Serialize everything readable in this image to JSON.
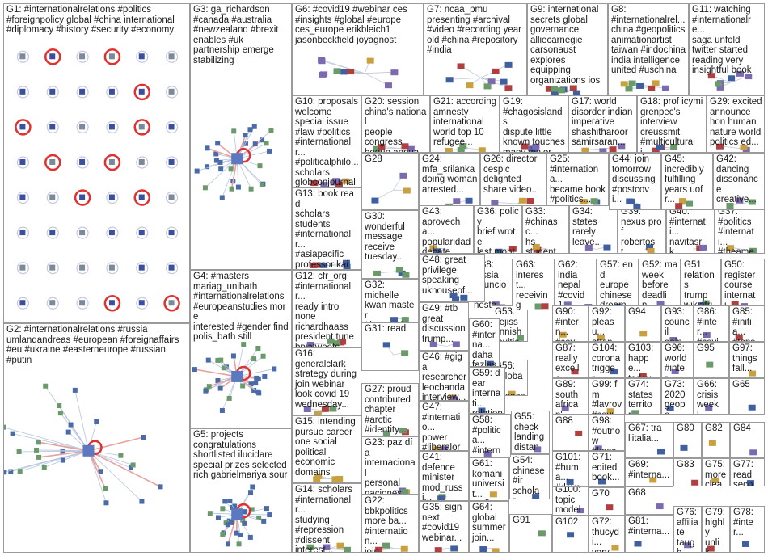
{
  "grid": [
    {
      "id": "G1",
      "kind": "dense",
      "text": "G1: #internationalrelations #politics\n#foreignpolicy global #china international\n#diplomacy #history #security #economy"
    },
    {
      "id": "G2",
      "kind": "hub",
      "text": "G2: #internationalrelations #russia\numlandandreas #european #foreignaffairs\n#eu #ukraine #easterneurope #russian\n#putin"
    },
    {
      "id": "G3",
      "kind": "hub",
      "text": "G3: ga_richardson\n#canada #australia\n#newzealand #brexit\nenables #uk\npartnership emerge\nstabilizing"
    },
    {
      "id": "G4",
      "kind": "hub",
      "text": "G4: #masters\nmariag_unibath\n#internationalrelations\n#europeanstudies more\ninterested #gender find\npolis_bath still"
    },
    {
      "id": "G5",
      "kind": "hub",
      "text": "G5: projects\ncongratulations\nshortlisted ilucidare\nspecial prizes selected\nrich gabrielmariya sour"
    },
    {
      "id": "G6",
      "kind": "small",
      "text": "G6: #covid19 #webinar ces\n#insights #global #europe\nces_europe erikbleich1\njasonbeckfield joyagnost"
    },
    {
      "id": "G7",
      "kind": "small",
      "text": "G7: ncaa_pmu\npresenting #archival\n#video #recording year\nold #china #repository\n#india"
    },
    {
      "id": "G8",
      "kind": "small",
      "text": "G8:\n#internationalrel...\nchina #geopolitics\nanimationartist\ntaiwan #indochina\nindia intelligence\nunited #uschina"
    },
    {
      "id": "G9",
      "kind": "small",
      "text": "G9: international\nsecrets global\ngovernance\nalliecarnegie\ncarsonaust\nexplores\nequipping\norganizations ios"
    },
    {
      "id": "G10",
      "kind": "small",
      "text": "G10: proposals\nwelcome\nspecial issue\n#law #politics\n#internationalr...\n#politicalphilo...\nscholars\nglobconjournal"
    },
    {
      "id": "G11",
      "kind": "small",
      "text": "G11: watching\n#internationalre...\nsaga unfold\ntwitter started\nreading very\ninsightful book"
    },
    {
      "id": "G12",
      "kind": "small",
      "text": "G12: cfr_org\n#internationalr...\nready intro\nnone\nrichardhaass\npresident tune\nbpiatweets..."
    },
    {
      "id": "G13",
      "kind": "small",
      "text": "G13: book read\nscholars\nstudents\n#internationalr...\n#asiapacific\nprofessor kai\ntitled gaigriffith"
    },
    {
      "id": "G14",
      "kind": "small",
      "text": "G14: scholars\n#internationalr...\nstudying\n#repression\n#dissent\ninterest..."
    },
    {
      "id": "G15",
      "kind": "small",
      "text": "G15: intending\npursue career\none social\npolitical\neconomic\ndomains"
    },
    {
      "id": "G16",
      "kind": "small",
      "text": "G16:\ngeneralclark\nstrategy during\njoin webinar\nlook covid 19\nwednesday..."
    },
    {
      "id": "G17",
      "kind": "small",
      "text": "G17: world\ndisorder indian\nimperative\nshashitharoor\nsamirsaran..."
    },
    {
      "id": "G18",
      "kind": "small",
      "text": "G18: prof icymi\ngrenpec's\ninterview\ncreussmit\n#multiculturali..."
    },
    {
      "id": "G19",
      "kind": "small",
      "text": "G19:\n#chagosislands\ndispute little\nknown touches\nmany major..."
    },
    {
      "id": "G20",
      "kind": "small",
      "text": "G20: session\nchina's national\npeople\ncongress\nbegun annual..."
    },
    {
      "id": "G21",
      "kind": "small",
      "text": "G21: according\namnesty\ninternational\nworld top 10\nrefugee..."
    },
    {
      "id": "G22",
      "kind": "small",
      "text": "G22:\nbbkpolitics\nmore ba...\n#internation...\njoin..."
    },
    {
      "id": "G23",
      "kind": "small",
      "text": "G23: paz día\ninternacional\npersonal\nnaciones\nunidas hoy..."
    },
    {
      "id": "G24",
      "kind": "small",
      "text": "G24:\nmfa_srilanka\ndoing woman\narrested..."
    },
    {
      "id": "G25",
      "kind": "small",
      "text": "G25:\n#internationa...\nbecame book\n#politics..."
    },
    {
      "id": "G26",
      "kind": "small",
      "text": "G26: director\ncespic\ndelighted\nshare video..."
    },
    {
      "id": "G27",
      "kind": "small",
      "text": "G27: proud\ncontributed\nchapter\n#arctic\n#identity..."
    },
    {
      "id": "G28",
      "kind": "small",
      "text": "G28"
    },
    {
      "id": "G29",
      "kind": "small",
      "text": "G29: excited\nannounce\nhon human\nnature world\npolitics ed..."
    },
    {
      "id": "G30",
      "kind": "small",
      "text": "G30:\nwonderful\nmessage\nreceive\ntuesday..."
    },
    {
      "id": "G31",
      "kind": "small",
      "text": "G31: read"
    },
    {
      "id": "G32",
      "kind": "small",
      "text": "G32:\nmichelle\nkwan master\n#internation...\nlearn more..."
    },
    {
      "id": "G33",
      "kind": "small",
      "text": "G33:\n#chinasc...\nhs\nstudents..."
    },
    {
      "id": "G34",
      "kind": "small",
      "text": "G34:\nstates\nrarely\nleave..."
    },
    {
      "id": "G35",
      "kind": "small",
      "text": "G35: sign\nnext\n#covid19\nwebinar..."
    },
    {
      "id": "G36",
      "kind": "small",
      "text": "G36: policy\nbrief wrote\nlast month\noutlining..."
    },
    {
      "id": "G37",
      "kind": "small",
      "text": "G37:\n#politics\n#internati...\n#theamer..."
    },
    {
      "id": "G38",
      "kind": "small",
      "text": "G38:\nrússia\nanunciou\nnesta\nquarta..."
    },
    {
      "id": "G39",
      "kind": "small",
      "text": "G39:\nnexus prof\nrobertost...\nlatest co..."
    },
    {
      "id": "G40",
      "kind": "small",
      "text": "G40:\n#internati...\nnavitasrik...\njanusmyt..."
    },
    {
      "id": "G41",
      "kind": "small",
      "text": "G41:\ndefence\nminister\nmod_russi..."
    },
    {
      "id": "G42",
      "kind": "small",
      "text": "G42:\ndancing\ndissonance\ncreative..."
    },
    {
      "id": "G43",
      "kind": "small",
      "text": "G43:\naprovecha...\npopularidad\ndebate..."
    },
    {
      "id": "G44",
      "kind": "small",
      "text": "G44: join\ntomorrow\ndiscussing\n#postcovi..."
    },
    {
      "id": "G45",
      "kind": "small",
      "text": "G45:\nincredibly\nfulfilling\nyears uofr..."
    },
    {
      "id": "G46",
      "kind": "small",
      "text": "G46: #giga\nresearcher\nleocbanda\ninterview..."
    },
    {
      "id": "G47",
      "kind": "small",
      "text": "G47:\n#internatio...\npower\n#liberalord..."
    },
    {
      "id": "G48",
      "kind": "small",
      "text": "G48: great\nprivilege\nspeaking\nukhouseof..."
    },
    {
      "id": "G49",
      "kind": "small",
      "text": "G49: #tb\ngreat\ndiscussion\ntrump..."
    },
    {
      "id": "G50",
      "kind": "small",
      "text": "G50:\nregister\ncourse\ninternati..."
    },
    {
      "id": "G51",
      "kind": "small",
      "text": "G51:\nrelations\ntrump\nwikiafrip..."
    },
    {
      "id": "G52",
      "kind": "small",
      "text": "G52: ma\nweek\nbefore\ndeadlin..."
    },
    {
      "id": "G53",
      "kind": "small",
      "text": "G53:\ncejiss\nfinnish\nmulticu..."
    },
    {
      "id": "G54",
      "kind": "small",
      "text": "G54:\nchinese\n#ir\nscholar..."
    },
    {
      "id": "G55",
      "kind": "small",
      "text": "G55:\ncheck\nlanding\ndistanc..."
    },
    {
      "id": "G56",
      "kind": "small",
      "text": "G56:\n#global...\n#peace\n#educa..."
    },
    {
      "id": "G57",
      "kind": "small",
      "text": "G57: end\neurope\nchinese\ndream..."
    },
    {
      "id": "G58",
      "kind": "small",
      "text": "G58:\n#politica...\n#interna...\n#foreign..."
    },
    {
      "id": "G59",
      "kind": "small",
      "text": "G59: dear\ninternati...\nrelations\npractitio..."
    },
    {
      "id": "G60",
      "kind": "small",
      "text": "G60:\n#interna...\ndaha\nfazlası..."
    },
    {
      "id": "G61",
      "kind": "small",
      "text": "G61:\nkomahi\nuniversit...\namikom..."
    },
    {
      "id": "G62",
      "kind": "small",
      "text": "G62:\nindia\nnepal\n#covid1..."
    },
    {
      "id": "G63",
      "kind": "small",
      "text": "G63:\ninterest...\nreceiving\nlatest..."
    },
    {
      "id": "G64",
      "kind": "small",
      "text": "G64:\nglobal\nsummer\njoin..."
    },
    {
      "id": "G65",
      "kind": "small",
      "text": "G65"
    },
    {
      "id": "G66",
      "kind": "small",
      "text": "G66:\ncrisis\nweekl..."
    },
    {
      "id": "G67",
      "kind": "small",
      "text": "G67: tra\nl'italia..."
    },
    {
      "id": "G68",
      "kind": "small",
      "text": "G68"
    },
    {
      "id": "G69",
      "kind": "small",
      "text": "G69:\n#interna..."
    },
    {
      "id": "G70",
      "kind": "small",
      "text": "G70"
    },
    {
      "id": "G71",
      "kind": "small",
      "text": "G71:\nedited\nbook..."
    },
    {
      "id": "G72",
      "kind": "small",
      "text": "G72:\nthucydi...\nvery..."
    },
    {
      "id": "G73",
      "kind": "small",
      "text": "G73:\n2020\ngeopo..."
    },
    {
      "id": "G74",
      "kind": "small",
      "text": "G74:\nstates\nterritor..."
    },
    {
      "id": "G75",
      "kind": "small",
      "text": "G75:\nmore\nclear..."
    },
    {
      "id": "G76",
      "kind": "small",
      "text": "G76:\naffiliate\ntaugh..."
    },
    {
      "id": "G77",
      "kind": "small",
      "text": "G77:\nread\nseco..."
    },
    {
      "id": "G78",
      "kind": "small",
      "text": "G78:\n#inter..."
    },
    {
      "id": "G79",
      "kind": "small",
      "text": "G79:\nhighly\nunlik..."
    },
    {
      "id": "G80",
      "kind": "small",
      "text": "G80"
    },
    {
      "id": "G81",
      "kind": "small",
      "text": "G81:\n#interna..."
    },
    {
      "id": "G82",
      "kind": "small",
      "text": "G82"
    },
    {
      "id": "G83",
      "kind": "small",
      "text": "G83"
    },
    {
      "id": "G84",
      "kind": "small",
      "text": "G84"
    },
    {
      "id": "G85",
      "kind": "small",
      "text": "G85:\n#initia...\n#topst..."
    },
    {
      "id": "G86",
      "kind": "small",
      "text": "G86:\n#inter...\n#covid..."
    },
    {
      "id": "G87",
      "kind": "small",
      "text": "G87:\nreally\nexcelle..."
    },
    {
      "id": "G88",
      "kind": "small",
      "text": "G88"
    },
    {
      "id": "G89",
      "kind": "small",
      "text": "G89:\nsouth\nafrican'..."
    },
    {
      "id": "G90",
      "kind": "small",
      "text": "G90:\n#intern...\n#covid..."
    },
    {
      "id": "G91",
      "kind": "small",
      "text": "G91"
    },
    {
      "id": "G92",
      "kind": "small",
      "text": "G92:\npleasu...\nattend..."
    },
    {
      "id": "G93",
      "kind": "small",
      "text": "G93:\ncouncil\ngains..."
    },
    {
      "id": "G94",
      "kind": "small",
      "text": "G94"
    },
    {
      "id": "G95",
      "kind": "small",
      "text": "G95"
    },
    {
      "id": "G96",
      "kind": "small",
      "text": "G96:\nworld\n#inter..."
    },
    {
      "id": "G97",
      "kind": "small",
      "text": "G97:\nthings\nfall..."
    },
    {
      "id": "G98",
      "kind": "small",
      "text": "G98:\n#outnow\n#kasca..."
    },
    {
      "id": "G99",
      "kind": "small",
      "text": "G99: fm\n#lavrov\n#covid..."
    },
    {
      "id": "G100",
      "kind": "small",
      "text": "G100:\ntopic\nmodeli..."
    },
    {
      "id": "G101",
      "kind": "small",
      "text": "G101:\n#huma...\n#devel..."
    },
    {
      "id": "G102",
      "kind": "small",
      "text": "G102"
    },
    {
      "id": "G103",
      "kind": "small",
      "text": "G103:\nhappe...\ntoday..."
    },
    {
      "id": "G104",
      "kind": "small",
      "text": "G104:\ncorona\ntrigger..."
    }
  ]
}
